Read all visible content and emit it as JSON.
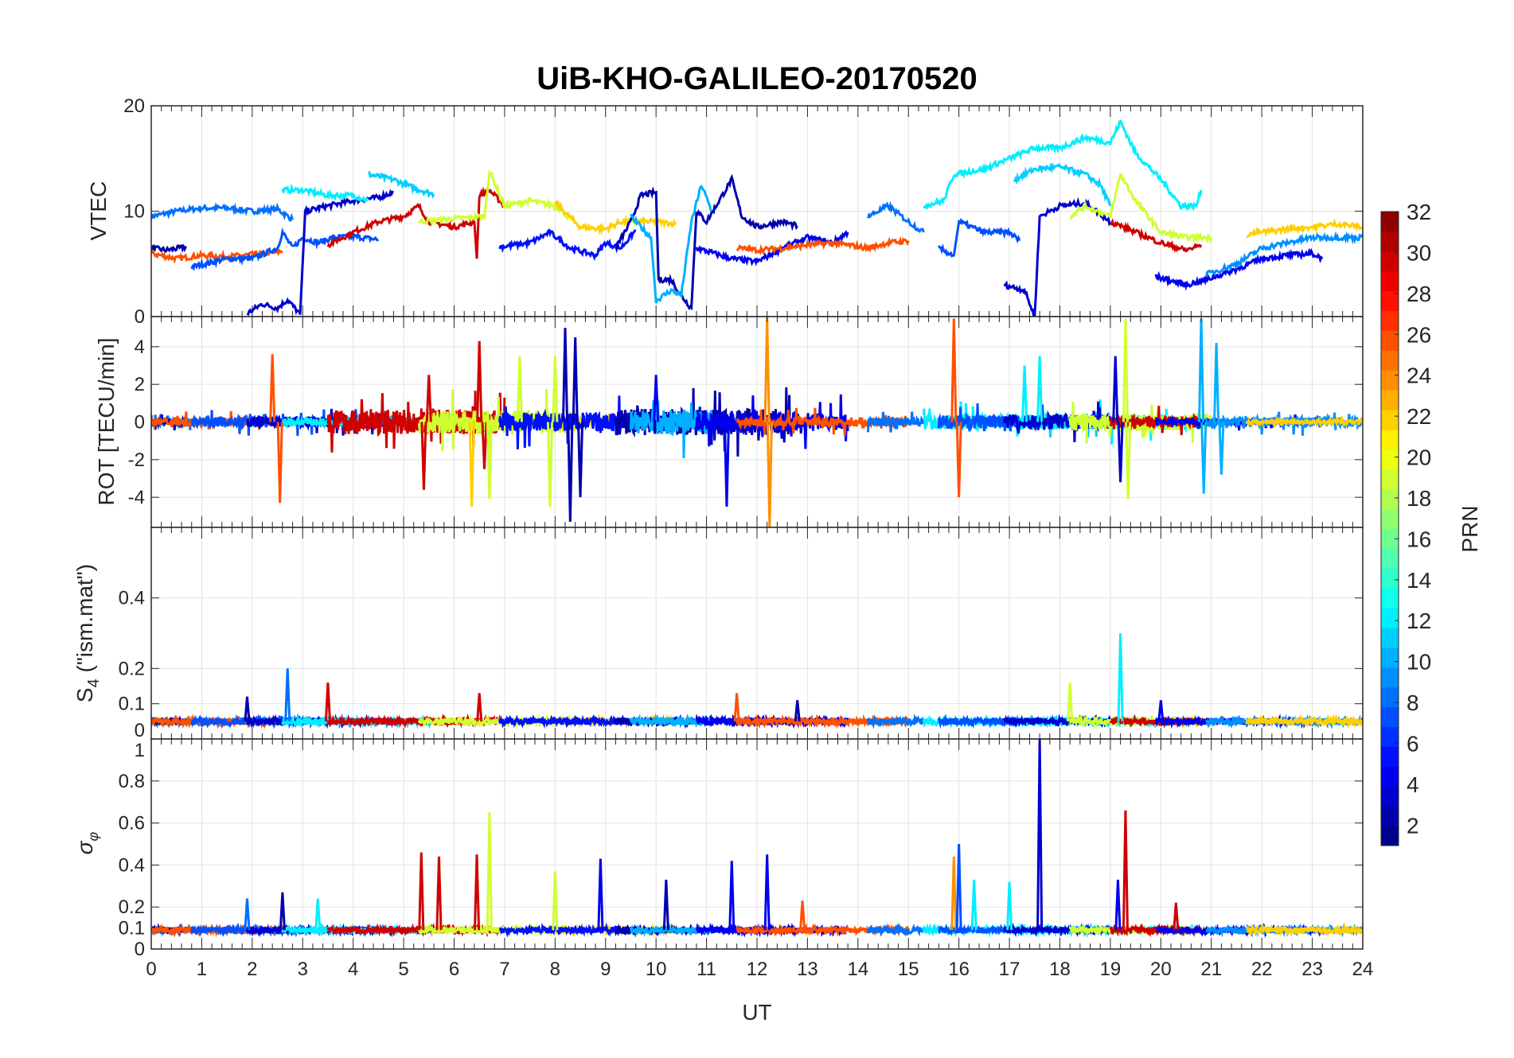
{
  "chart_data": {
    "type": "line",
    "title": "UiB-KHO-GALILEO-20170520",
    "xlabel": "UT",
    "xlim": [
      0,
      24
    ],
    "xticks": [
      "0",
      "1",
      "2",
      "3",
      "4",
      "5",
      "6",
      "7",
      "8",
      "9",
      "10",
      "11",
      "12",
      "13",
      "14",
      "15",
      "16",
      "17",
      "18",
      "19",
      "20",
      "21",
      "22",
      "23",
      "24"
    ],
    "colorbar": {
      "label": "PRN",
      "range": [
        1,
        32
      ],
      "levels": 32,
      "colormap": "jet",
      "ticks": [
        "2",
        "4",
        "6",
        "8",
        "10",
        "12",
        "14",
        "16",
        "18",
        "20",
        "22",
        "24",
        "26",
        "28",
        "30",
        "32"
      ]
    },
    "panels": [
      {
        "id": "vtec",
        "ylabel": "VTEC",
        "ylim": [
          0,
          20
        ],
        "yticks": [
          "0",
          "10",
          "20"
        ],
        "ytick_values": [
          0,
          10,
          20
        ]
      },
      {
        "id": "rot",
        "ylabel": "ROT [TECU/min]",
        "ylim": [
          -5.6,
          5.6
        ],
        "yticks": [
          "-4",
          "-2",
          "0",
          "2",
          "4"
        ],
        "ytick_values": [
          -4,
          -2,
          0,
          2,
          4
        ]
      },
      {
        "id": "s4",
        "ylabel_main": "S",
        "ylabel_sub": "4",
        "ylabel_rest": " (\"ism.mat\")",
        "ylim": [
          0,
          0.6
        ],
        "yticks": [
          "0",
          "0.1",
          "0.2",
          "0.4"
        ],
        "ytick_values": [
          0,
          0.1,
          0.2,
          0.4
        ]
      },
      {
        "id": "sigma",
        "ylabel_main": "σ",
        "ylabel_sub": "φ",
        "ylim": [
          0,
          1
        ],
        "yticks": [
          "0",
          "0.1",
          "0.2",
          "0.4",
          "0.6",
          "0.8",
          "1"
        ],
        "ytick_values": [
          0,
          0.1,
          0.2,
          0.4,
          0.6,
          0.8,
          1
        ]
      }
    ],
    "vtec_series": [
      {
        "prn": 8,
        "rot_amp": 0.3,
        "points": [
          [
            0,
            9.5
          ],
          [
            0.5,
            10
          ],
          [
            1,
            10.3
          ],
          [
            1.5,
            10.3
          ],
          [
            2,
            10
          ],
          [
            2.5,
            10.2
          ],
          [
            2.8,
            9.2
          ]
        ]
      },
      {
        "prn": 2,
        "rot_amp": 0.3,
        "points": [
          [
            0,
            6.5
          ],
          [
            0.3,
            6.3
          ],
          [
            0.7,
            6.6
          ]
        ]
      },
      {
        "prn": 26,
        "rot_amp": 0.4,
        "points": [
          [
            0,
            6
          ],
          [
            0.5,
            5.5
          ],
          [
            1,
            5.8
          ],
          [
            1.5,
            5.7
          ],
          [
            2.3,
            6
          ],
          [
            2.6,
            6.2
          ]
        ]
      },
      {
        "prn": 7,
        "rot_amp": 0.5,
        "points": [
          [
            0.8,
            4.7
          ],
          [
            1.5,
            5.5
          ],
          [
            2,
            5.5
          ],
          [
            2.5,
            6.5
          ],
          [
            2.6,
            8
          ],
          [
            2.8,
            6.5
          ],
          [
            3,
            7.5
          ],
          [
            3.3,
            7
          ],
          [
            3.6,
            7.5
          ],
          [
            4,
            7.6
          ],
          [
            4.5,
            7.3
          ]
        ]
      },
      {
        "prn": 3,
        "rot_amp": 0.6,
        "points": [
          [
            1.9,
            0.3
          ],
          [
            2.2,
            1.2
          ],
          [
            2.5,
            0.8
          ],
          [
            2.7,
            1.6
          ],
          [
            2.95,
            0.2
          ],
          [
            3.05,
            10
          ],
          [
            3.5,
            10.5
          ],
          [
            4,
            11
          ],
          [
            4.5,
            11.3
          ],
          [
            4.8,
            11.8
          ]
        ]
      },
      {
        "prn": 12,
        "rot_amp": 0.4,
        "points": [
          [
            2.6,
            12
          ],
          [
            3,
            12
          ],
          [
            3.5,
            11.5
          ],
          [
            4,
            11.5
          ],
          [
            4.3,
            11
          ]
        ]
      },
      {
        "prn": 11,
        "rot_amp": 0.3,
        "points": [
          [
            4.3,
            13.5
          ],
          [
            4.8,
            13
          ],
          [
            5.2,
            12.2
          ],
          [
            5.6,
            11.6
          ]
        ]
      },
      {
        "prn": 30,
        "rot_amp": 1.3,
        "points": [
          [
            3.5,
            6.8
          ],
          [
            4,
            8
          ],
          [
            4.5,
            9
          ],
          [
            5,
            9.5
          ],
          [
            5.3,
            10.5
          ],
          [
            5.5,
            9
          ],
          [
            6,
            8.5
          ],
          [
            6.4,
            9
          ],
          [
            6.45,
            5.5
          ],
          [
            6.5,
            11.5
          ],
          [
            6.7,
            12
          ],
          [
            7,
            10.5
          ]
        ]
      },
      {
        "prn": 19,
        "rot_amp": 1.2,
        "points": [
          [
            5.3,
            9
          ],
          [
            6,
            9.3
          ],
          [
            6.6,
            9.5
          ],
          [
            6.7,
            13.8
          ],
          [
            7,
            10.5
          ],
          [
            7.5,
            11
          ],
          [
            8,
            10.5
          ],
          [
            8.4,
            9
          ]
        ]
      },
      {
        "prn": 22,
        "rot_amp": 0.4,
        "points": [
          [
            8,
            10.8
          ],
          [
            8.5,
            8.5
          ],
          [
            9,
            8.3
          ],
          [
            9.3,
            9
          ],
          [
            10,
            9
          ],
          [
            10.4,
            8.8
          ]
        ]
      },
      {
        "prn": 5,
        "rot_amp": 1.0,
        "points": [
          [
            6.9,
            6.6
          ],
          [
            7.5,
            7
          ],
          [
            7.9,
            8
          ],
          [
            8.3,
            6.5
          ],
          [
            8.8,
            5.8
          ],
          [
            9,
            7
          ],
          [
            9.3,
            6.5
          ],
          [
            9.6,
            8.2
          ]
        ]
      },
      {
        "prn": 2,
        "rot_amp": 1.4,
        "points": [
          [
            9.2,
            6.5
          ],
          [
            9.5,
            9
          ],
          [
            9.7,
            11.5
          ],
          [
            10,
            11.8
          ],
          [
            10.05,
            3.5
          ],
          [
            10.3,
            3.5
          ],
          [
            10.5,
            2
          ],
          [
            10.7,
            0.8
          ],
          [
            10.8,
            10
          ],
          [
            11,
            9
          ],
          [
            11.5,
            13
          ],
          [
            11.7,
            9.5
          ],
          [
            12,
            8.5
          ],
          [
            12.5,
            9
          ],
          [
            12.8,
            8.6
          ]
        ]
      },
      {
        "prn": 10,
        "rot_amp": 1.3,
        "points": [
          [
            9.5,
            9.5
          ],
          [
            9.9,
            7.5
          ],
          [
            10,
            1.5
          ],
          [
            10.3,
            2.5
          ],
          [
            10.5,
            2
          ],
          [
            10.7,
            9
          ],
          [
            10.9,
            12.5
          ],
          [
            11.1,
            10
          ]
        ]
      },
      {
        "prn": 4,
        "rot_amp": 1.0,
        "points": [
          [
            10.8,
            6.5
          ],
          [
            11.5,
            5.5
          ],
          [
            12,
            5.2
          ],
          [
            12.5,
            6.5
          ],
          [
            13,
            7.5
          ],
          [
            13.5,
            7
          ],
          [
            13.8,
            8
          ]
        ]
      },
      {
        "prn": 26,
        "rot_amp": 0.5,
        "points": [
          [
            11.6,
            6.5
          ],
          [
            12,
            6.3
          ],
          [
            12.5,
            6.5
          ],
          [
            13,
            6.8
          ],
          [
            13.5,
            7
          ],
          [
            14.2,
            6.5
          ],
          [
            14.6,
            7
          ],
          [
            15,
            7.2
          ]
        ]
      },
      {
        "prn": 8,
        "rot_amp": 0.4,
        "points": [
          [
            14.2,
            9.5
          ],
          [
            14.6,
            10.5
          ],
          [
            15,
            9
          ],
          [
            15.3,
            8
          ]
        ]
      },
      {
        "prn": 12,
        "rot_amp": 0.8,
        "points": [
          [
            15.3,
            10.5
          ],
          [
            15.7,
            11
          ],
          [
            15.9,
            13.5
          ],
          [
            16.5,
            14
          ],
          [
            17,
            15
          ],
          [
            17.5,
            16
          ],
          [
            18,
            16
          ],
          [
            18.5,
            17
          ],
          [
            19,
            16.5
          ],
          [
            19.2,
            18.5
          ],
          [
            19.5,
            15.5
          ],
          [
            20,
            13
          ],
          [
            20.4,
            10.5
          ],
          [
            20.7,
            10.5
          ],
          [
            20.8,
            12
          ]
        ]
      },
      {
        "prn": 11,
        "rot_amp": 0.6,
        "points": [
          [
            17.1,
            13
          ],
          [
            17.5,
            14
          ],
          [
            18,
            14.2
          ],
          [
            18.5,
            13.5
          ],
          [
            18.8,
            12.5
          ],
          [
            19,
            10.5
          ]
        ]
      },
      {
        "prn": 7,
        "rot_amp": 0.7,
        "points": [
          [
            15.6,
            6.5
          ],
          [
            15.9,
            5.8
          ],
          [
            16,
            9
          ],
          [
            16.5,
            8
          ],
          [
            17,
            8
          ],
          [
            17.2,
            7.2
          ]
        ]
      },
      {
        "prn": 3,
        "rot_amp": 0.8,
        "points": [
          [
            16.9,
            3
          ],
          [
            17.3,
            2.5
          ],
          [
            17.5,
            0
          ],
          [
            17.6,
            9.5
          ],
          [
            18,
            10.5
          ],
          [
            18.5,
            10.8
          ],
          [
            19,
            9
          ]
        ]
      },
      {
        "prn": 19,
        "rot_amp": 0.9,
        "points": [
          [
            18.2,
            9.5
          ],
          [
            18.5,
            10.5
          ],
          [
            19,
            9.5
          ],
          [
            19.2,
            13.5
          ],
          [
            19.5,
            11
          ],
          [
            20,
            8
          ],
          [
            20.5,
            7.5
          ],
          [
            21,
            7.5
          ]
        ]
      },
      {
        "prn": 30,
        "rot_amp": 0.6,
        "points": [
          [
            19,
            9
          ],
          [
            19.5,
            8
          ],
          [
            20,
            7
          ],
          [
            20.5,
            6.3
          ],
          [
            20.8,
            6.8
          ]
        ]
      },
      {
        "prn": 4,
        "rot_amp": 0.3,
        "points": [
          [
            19.9,
            3.8
          ],
          [
            20.5,
            3
          ],
          [
            20.9,
            3.5
          ],
          [
            21.5,
            4.5
          ],
          [
            22,
            5.5
          ],
          [
            22.5,
            5.8
          ],
          [
            23,
            6
          ],
          [
            23.2,
            5.5
          ]
        ]
      },
      {
        "prn": 9,
        "rot_amp": 0.5,
        "points": [
          [
            20.9,
            4
          ],
          [
            21.5,
            5
          ],
          [
            22,
            6.5
          ],
          [
            22.5,
            7
          ],
          [
            23,
            7.5
          ],
          [
            24,
            7.5
          ]
        ]
      },
      {
        "prn": 22,
        "rot_amp": 0.2,
        "points": [
          [
            21.7,
            7.8
          ],
          [
            22,
            8
          ],
          [
            22.5,
            8.3
          ],
          [
            23,
            8.5
          ],
          [
            23.5,
            8.8
          ],
          [
            24,
            8.5
          ]
        ]
      }
    ],
    "rot_spikes": [
      [
        26,
        2.4,
        3.6
      ],
      [
        26,
        2.55,
        -4.3
      ],
      [
        30,
        5.4,
        -3.6
      ],
      [
        30,
        5.5,
        2.5
      ],
      [
        30,
        6.5,
        4.3
      ],
      [
        30,
        6.6,
        -2.5
      ],
      [
        22,
        6.35,
        -4.5
      ],
      [
        19,
        6.7,
        -4.1
      ],
      [
        19,
        7.3,
        3.5
      ],
      [
        19,
        7.9,
        -4.5
      ],
      [
        19,
        8,
        3.5
      ],
      [
        2,
        8.2,
        5
      ],
      [
        2,
        8.3,
        -5.3
      ],
      [
        2,
        8.4,
        4.5
      ],
      [
        2,
        8.5,
        -4
      ],
      [
        4,
        10,
        2.5
      ],
      [
        4,
        11.4,
        -4.5
      ],
      [
        24,
        12.2,
        5.6
      ],
      [
        24,
        12.25,
        -5.6
      ],
      [
        26,
        15.9,
        5.5
      ],
      [
        26,
        16,
        -4
      ],
      [
        12,
        17.3,
        3
      ],
      [
        12,
        17.6,
        3.5
      ],
      [
        3,
        19.1,
        3.5
      ],
      [
        3,
        19.2,
        -3.2
      ],
      [
        19,
        19.3,
        5.5
      ],
      [
        19,
        19.35,
        -4.1
      ],
      [
        10,
        20.8,
        5.5
      ],
      [
        10,
        20.85,
        -3.8
      ],
      [
        10,
        21.1,
        4.2
      ],
      [
        10,
        21.2,
        -2.8
      ]
    ],
    "s4_base": 0.05,
    "s4_spikes": [
      [
        2,
        1.9,
        0.12
      ],
      [
        8,
        2.7,
        0.2
      ],
      [
        30,
        3.5,
        0.16
      ],
      [
        30,
        6.5,
        0.13
      ],
      [
        26,
        11.6,
        0.13
      ],
      [
        2,
        12.8,
        0.11
      ],
      [
        19,
        18.2,
        0.16
      ],
      [
        12,
        19.2,
        0.3
      ],
      [
        4,
        20,
        0.11
      ]
    ],
    "sigma_base": 0.09,
    "sigma_spikes": [
      [
        8,
        1.9,
        0.24
      ],
      [
        2,
        2.6,
        0.27
      ],
      [
        12,
        3.3,
        0.24
      ],
      [
        30,
        5.35,
        0.46
      ],
      [
        30,
        5.7,
        0.44
      ],
      [
        30,
        6.45,
        0.45
      ],
      [
        19,
        6.7,
        0.65
      ],
      [
        19,
        8,
        0.37
      ],
      [
        4,
        8.9,
        0.43
      ],
      [
        2,
        10.2,
        0.33
      ],
      [
        4,
        11.5,
        0.42
      ],
      [
        4,
        12.2,
        0.45
      ],
      [
        26,
        12.9,
        0.23
      ],
      [
        24,
        15.9,
        0.44
      ],
      [
        7,
        16,
        0.5
      ],
      [
        12,
        16.3,
        0.33
      ],
      [
        12,
        17,
        0.32
      ],
      [
        3,
        17.6,
        1.0
      ],
      [
        30,
        19.3,
        0.66
      ],
      [
        4,
        19.15,
        0.33
      ],
      [
        30,
        20.3,
        0.22
      ]
    ]
  }
}
